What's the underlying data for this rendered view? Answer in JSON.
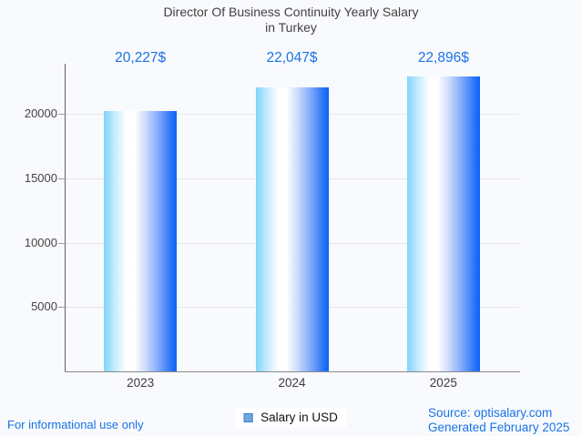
{
  "colors": {
    "background": "#f8fafd",
    "title_text": "#424242",
    "annotation_blue": "#1a73e8",
    "axis_label": "#444444",
    "gridline": "#e6e6e6",
    "bar_gradient_left": "#7fd4fb",
    "bar_gradient_middle": "#ffffff",
    "bar_gradient_right": "#0c63f6",
    "legend_swatch_fill": "#6fa8dc",
    "legend_swatch_border": "#3a7bd5"
  },
  "chart_data": {
    "type": "bar",
    "title": "Director Of Business Continuity Yearly Salary in Turkey",
    "title_line1": "Director Of Business Continuity Yearly Salary",
    "title_line2": "in Turkey",
    "categories": [
      "2023",
      "2024",
      "2025"
    ],
    "series": [
      {
        "name": "Salary in USD",
        "values": [
          20227,
          22047,
          22896
        ]
      }
    ],
    "value_labels": [
      "20,227$",
      "22,047$",
      "22,896$"
    ],
    "xlabel": "",
    "ylabel": "",
    "y_ticks": [
      5000,
      10000,
      15000,
      20000
    ],
    "ylim": [
      0,
      23900
    ],
    "grid": true,
    "legend_position": "bottom"
  },
  "legend": {
    "label": "Salary in USD"
  },
  "footer": {
    "left_note": "For informational use only",
    "source_line": "Source: optisalary.com",
    "generated_line": "Generated February 2025"
  }
}
